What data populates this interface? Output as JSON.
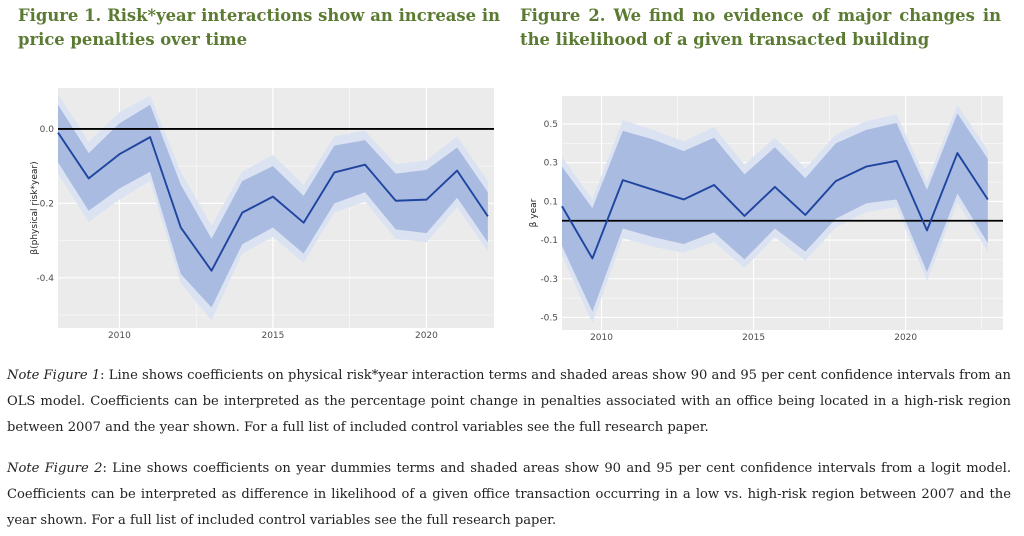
{
  "figure1": {
    "title": "Figure 1. Risk*year interactions show an increase in price penalties over time",
    "note_label": "Note Figure 1",
    "note_text": ": Line shows coefficients on physical risk*year interaction terms and shaded areas show 90 and 95 per cent confidence intervals from an OLS model. Coefficients can be interpreted as the percentage point change in penalties associated with an office being located in a high-risk region between 2007 and the year shown. For a full list of included control variables see the full research paper."
  },
  "figure2": {
    "title": "Figure 2. We find no evidence of major changes in the likelihood of a given transacted building",
    "note_label": "Note Figure 2",
    "note_text": ": Line shows coefficients on year dummies terms and shaded areas show 90 and 95 per cent confidence intervals from a logit model. Coefficients can be interpreted as difference in likelihood of a given office transaction occurring in a low vs. high-risk region between 2007 and the year shown. For a full list of included control variables see the full research paper."
  },
  "colors": {
    "title": "#5b7a32",
    "line": "#1f45a0",
    "ci90": "#a9bbe0",
    "ci95": "#dbe3f2",
    "panel": "#ebebeb",
    "grid": "#ffffff",
    "ref": "#000000"
  },
  "chart_data": [
    {
      "type": "line",
      "title": "",
      "xlabel": "",
      "ylabel": "β(physical risk*year)",
      "x": [
        2008,
        2009,
        2010,
        2011,
        2012,
        2013,
        2014,
        2015,
        2016,
        2017,
        2018,
        2019,
        2020,
        2021,
        2022
      ],
      "xlim": [
        2008,
        2022.2
      ],
      "ylim": [
        -0.535,
        0.11
      ],
      "xticks": [
        2010,
        2015,
        2020
      ],
      "xtick_labels": [
        "2010",
        "2015",
        "2020"
      ],
      "yticks": [
        0.0,
        -0.2,
        -0.4
      ],
      "ytick_labels": [
        "0.0",
        "-0.2",
        "-0.4"
      ],
      "reference_line": 0,
      "grid": true,
      "series": [
        {
          "values": [
            -0.01,
            -0.133,
            -0.068,
            -0.022,
            -0.265,
            -0.381,
            -0.225,
            -0.182,
            -0.252,
            -0.117,
            -0.096,
            -0.193,
            -0.19,
            -0.112,
            -0.235
          ],
          "ci90_upper": [
            0.065,
            -0.065,
            0.015,
            0.065,
            -0.15,
            -0.295,
            -0.14,
            -0.1,
            -0.18,
            -0.045,
            -0.03,
            -0.12,
            -0.11,
            -0.05,
            -0.17
          ],
          "ci90_lower": [
            -0.09,
            -0.22,
            -0.16,
            -0.115,
            -0.39,
            -0.48,
            -0.31,
            -0.265,
            -0.335,
            -0.2,
            -0.17,
            -0.27,
            -0.28,
            -0.185,
            -0.305
          ],
          "ci95_upper": [
            0.095,
            -0.035,
            0.045,
            0.09,
            -0.115,
            -0.26,
            -0.115,
            -0.07,
            -0.15,
            -0.02,
            -0.005,
            -0.095,
            -0.085,
            -0.02,
            -0.14
          ],
          "ci95_lower": [
            -0.12,
            -0.25,
            -0.19,
            -0.14,
            -0.415,
            -0.515,
            -0.335,
            -0.29,
            -0.36,
            -0.225,
            -0.195,
            -0.295,
            -0.305,
            -0.21,
            -0.33
          ]
        }
      ]
    },
    {
      "type": "line",
      "title": "",
      "xlabel": "",
      "ylabel": "β year",
      "x": [
        2008.7,
        2009.7,
        2010.7,
        2011.7,
        2012.7,
        2013.7,
        2014.7,
        2015.7,
        2016.7,
        2017.7,
        2018.7,
        2019.7,
        2020.7,
        2021.7,
        2022.7
      ],
      "xlim": [
        2008.7,
        2023.2
      ],
      "ylim": [
        -0.565,
        0.645
      ],
      "xticks": [
        2010,
        2015,
        2020
      ],
      "xtick_labels": [
        "2010",
        "2015",
        "2020"
      ],
      "yticks": [
        0.5,
        0.3,
        0.1,
        -0.1,
        -0.3,
        -0.5
      ],
      "ytick_labels": [
        "0.5",
        "0.3",
        "0.1",
        "-0.1",
        "-0.3",
        "-0.5"
      ],
      "reference_line": 0,
      "grid": true,
      "series": [
        {
          "values": [
            0.075,
            -0.195,
            0.21,
            0.16,
            0.11,
            0.185,
            0.025,
            0.175,
            0.03,
            0.205,
            0.28,
            0.31,
            -0.05,
            0.35,
            0.11
          ],
          "ci90_upper": [
            0.28,
            0.065,
            0.465,
            0.42,
            0.36,
            0.43,
            0.24,
            0.38,
            0.22,
            0.4,
            0.47,
            0.505,
            0.16,
            0.555,
            0.32
          ],
          "ci90_lower": [
            -0.13,
            -0.47,
            -0.04,
            -0.085,
            -0.12,
            -0.06,
            -0.2,
            -0.04,
            -0.16,
            0.01,
            0.09,
            0.11,
            -0.265,
            0.14,
            -0.115
          ],
          "ci95_upper": [
            0.33,
            0.11,
            0.52,
            0.47,
            0.41,
            0.485,
            0.29,
            0.43,
            0.27,
            0.445,
            0.515,
            0.55,
            0.205,
            0.6,
            0.365
          ],
          "ci95_lower": [
            -0.18,
            -0.53,
            -0.09,
            -0.135,
            -0.165,
            -0.11,
            -0.245,
            -0.085,
            -0.205,
            -0.035,
            0.045,
            0.07,
            -0.31,
            0.095,
            -0.16
          ]
        }
      ]
    }
  ]
}
